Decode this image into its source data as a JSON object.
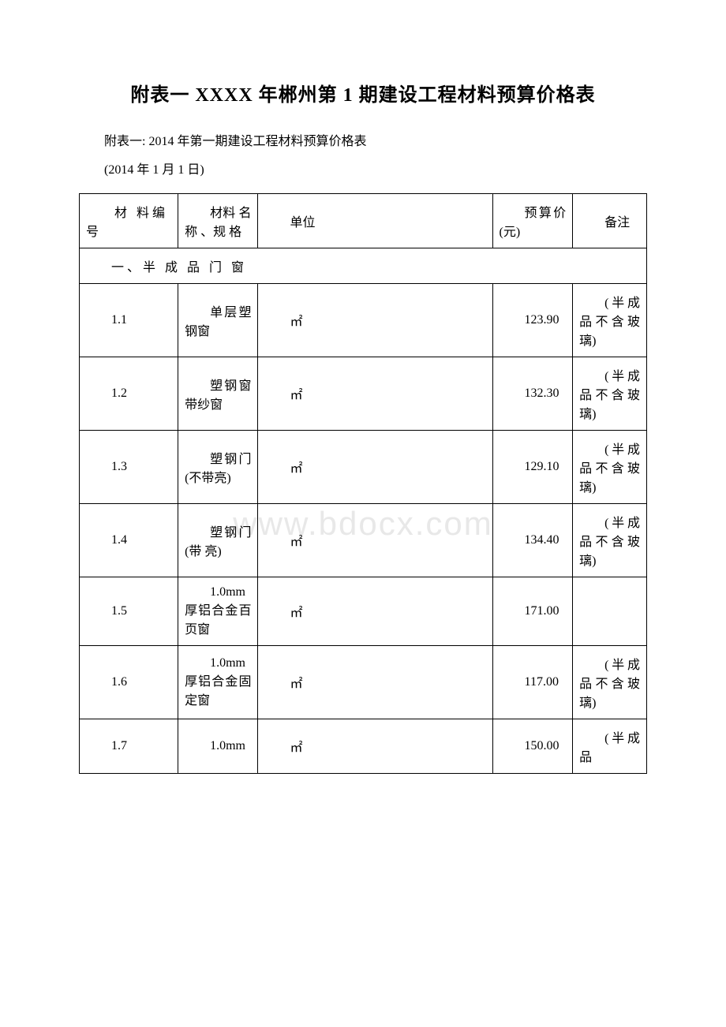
{
  "title": "附表一 XXXX 年郴州第 1 期建设工程材料预算价格表",
  "subtitle": "附表一: 2014 年第一期建设工程材料预算价格表",
  "dateLine": "(2014 年 1 月 1 日)",
  "watermark": "www.bdocx.com",
  "headers": {
    "id": "材 料编 号",
    "name": "材料 名称 、规 格",
    "unit": "单位",
    "price": "预算价(元)",
    "note": "备注"
  },
  "sectionTitle": "一、半 成 品 门 窗",
  "rows": [
    {
      "id": "1.1",
      "name": "单层塑钢窗",
      "unit": "㎡",
      "price": "123.90",
      "note": "(半成品不含玻璃)"
    },
    {
      "id": "1.2",
      "name": "塑钢窗带纱窗",
      "unit": "㎡",
      "price": "132.30",
      "note": "(半成品不含玻璃)"
    },
    {
      "id": "1.3",
      "name": "塑钢门 (不带亮)",
      "unit": "㎡",
      "price": "129.10",
      "note": "(半成品不含玻璃)"
    },
    {
      "id": "1.4",
      "name": "塑钢门 (带 亮)",
      "unit": "㎡",
      "price": "134.40",
      "note": "(半成品不含玻璃)"
    },
    {
      "id": "1.5",
      "name": "1.0mm厚铝合金百页窗",
      "unit": "㎡",
      "price": "171.00",
      "note": ""
    },
    {
      "id": "1.6",
      "name": "1.0mm厚铝合金固定窗",
      "unit": "㎡",
      "price": "117.00",
      "note": "(半成品不含玻璃)"
    },
    {
      "id": "1.7",
      "name": "1.0mm",
      "unit": "㎡",
      "price": "150.00",
      "note": "(半成品"
    }
  ]
}
